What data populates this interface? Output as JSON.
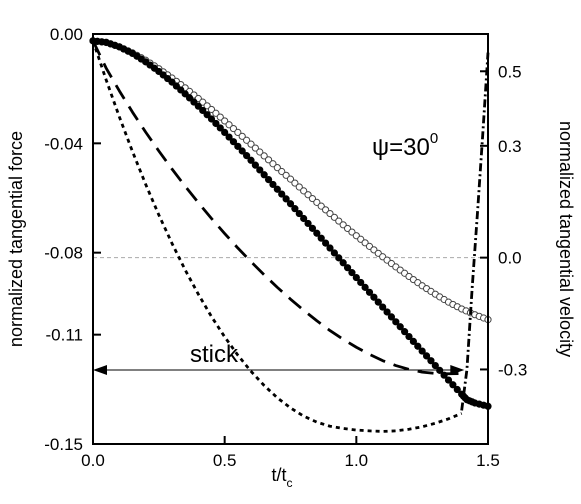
{
  "chart_data": {
    "type": "line",
    "xlabel": "t/t",
    "xlabel_sub": "c",
    "ylabel_left": "normalized tangential force",
    "ylabel_right": "normalized tangential velocity",
    "xlim": [
      0,
      1.5
    ],
    "ylim_left": [
      -0.15,
      0.0
    ],
    "ylim_right": [
      -0.5,
      0.6
    ],
    "x_ticks": [
      "0.0",
      "0.5",
      "1.0",
      "1.5"
    ],
    "y_left_ticks": [
      "0.00",
      "-0.04",
      "-0.08",
      "-0.11",
      "-0.15"
    ],
    "y_right_ticks": [
      "0.5",
      "0.3",
      "0.0",
      "-0.3"
    ],
    "annotation_psi": "ψ=30",
    "annotation_psi_sup": "0",
    "annotation_stick": "stick",
    "stick_range": [
      0.0,
      1.41
    ],
    "zero_velocity_reference": 0.0,
    "grid": false,
    "series": [
      {
        "style": "open-circles",
        "axis": "left",
        "x": [
          0.0,
          0.05,
          0.1,
          0.15,
          0.2,
          0.25,
          0.3,
          0.35,
          0.4,
          0.45,
          0.5,
          0.55,
          0.6,
          0.65,
          0.7,
          0.75,
          0.8,
          0.85,
          0.9,
          0.95,
          1.0,
          1.05,
          1.1,
          1.15,
          1.2,
          1.25,
          1.3,
          1.35,
          1.4,
          1.45,
          1.5
        ],
        "y": [
          -0.0025,
          -0.003,
          -0.0047,
          -0.0069,
          -0.0096,
          -0.0127,
          -0.0161,
          -0.0197,
          -0.0236,
          -0.0276,
          -0.0318,
          -0.036,
          -0.0403,
          -0.0446,
          -0.0489,
          -0.0531,
          -0.0574,
          -0.0616,
          -0.0657,
          -0.0698,
          -0.0738,
          -0.0777,
          -0.0815,
          -0.0852,
          -0.0887,
          -0.0921,
          -0.0952,
          -0.0981,
          -0.1006,
          -0.1027,
          -0.1045
        ]
      },
      {
        "style": "filled-circles",
        "axis": "left",
        "x": [
          0.0,
          0.05,
          0.1,
          0.15,
          0.2,
          0.25,
          0.3,
          0.35,
          0.4,
          0.45,
          0.5,
          0.55,
          0.6,
          0.65,
          0.7,
          0.75,
          0.8,
          0.85,
          0.9,
          0.95,
          1.0,
          1.05,
          1.1,
          1.15,
          1.2,
          1.25,
          1.3,
          1.35,
          1.4,
          1.42,
          1.45,
          1.5
        ],
        "y": [
          -0.0025,
          -0.0031,
          -0.0047,
          -0.0071,
          -0.0102,
          -0.0137,
          -0.0176,
          -0.0219,
          -0.0264,
          -0.0311,
          -0.036,
          -0.0411,
          -0.0462,
          -0.0515,
          -0.0568,
          -0.0621,
          -0.0675,
          -0.0729,
          -0.0783,
          -0.0837,
          -0.0891,
          -0.0945,
          -0.0999,
          -0.1053,
          -0.1107,
          -0.116,
          -0.1213,
          -0.1266,
          -0.1318,
          -0.1338,
          -0.135,
          -0.1362
        ]
      },
      {
        "style": "long-dash",
        "axis": "left",
        "x": [
          0.0,
          0.05,
          0.1,
          0.15,
          0.2,
          0.25,
          0.3,
          0.35,
          0.4,
          0.45,
          0.5,
          0.55,
          0.6,
          0.65,
          0.7,
          0.75,
          0.8,
          0.85,
          0.9,
          0.95,
          1.0,
          1.05,
          1.1,
          1.15,
          1.2,
          1.25,
          1.3,
          1.35,
          1.4
        ],
        "y": [
          -0.0025,
          -0.0125,
          -0.0208,
          -0.0286,
          -0.0359,
          -0.0428,
          -0.0494,
          -0.0557,
          -0.0617,
          -0.0675,
          -0.073,
          -0.0783,
          -0.0833,
          -0.0881,
          -0.0927,
          -0.097,
          -0.1011,
          -0.1049,
          -0.1085,
          -0.1117,
          -0.1146,
          -0.1172,
          -0.1195,
          -0.1213,
          -0.1227,
          -0.1237,
          -0.1242,
          -0.1243,
          -0.1242
        ]
      },
      {
        "style": "short-dash",
        "axis": "left",
        "x": [
          0.0,
          0.05,
          0.1,
          0.15,
          0.2,
          0.25,
          0.3,
          0.35,
          0.4,
          0.45,
          0.5,
          0.55,
          0.6,
          0.65,
          0.7,
          0.75,
          0.8,
          0.85,
          0.9,
          0.95,
          1.0,
          1.05,
          1.1,
          1.15,
          1.2,
          1.25,
          1.3,
          1.35,
          1.4
        ],
        "y": [
          -0.0025,
          -0.0168,
          -0.0303,
          -0.043,
          -0.055,
          -0.0662,
          -0.0766,
          -0.0863,
          -0.0952,
          -0.1034,
          -0.1108,
          -0.1175,
          -0.1234,
          -0.1286,
          -0.1331,
          -0.1368,
          -0.1398,
          -0.142,
          -0.1435,
          -0.1443,
          -0.1449,
          -0.1452,
          -0.1454,
          -0.1452,
          -0.1446,
          -0.1437,
          -0.1424,
          -0.1408,
          -0.1388
        ]
      },
      {
        "style": "dash-dot",
        "axis": "right",
        "x": [
          1.4,
          1.42,
          1.44,
          1.46,
          1.48,
          1.5
        ],
        "y": [
          -0.41,
          -0.3,
          -0.08,
          0.12,
          0.33,
          0.55
        ]
      }
    ]
  }
}
